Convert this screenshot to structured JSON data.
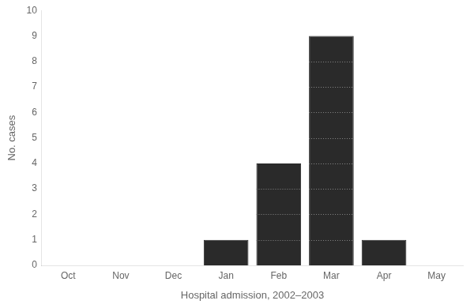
{
  "chart_data": {
    "type": "bar",
    "categories": [
      "Oct",
      "Nov",
      "Dec",
      "Jan",
      "Feb",
      "Mar",
      "Apr",
      "May"
    ],
    "values": [
      0,
      0,
      0,
      1,
      4,
      9,
      1,
      0
    ],
    "color": "#2a2a2a",
    "xlabel": "Hospital admission, 2002–2003",
    "ylabel": "No. cases",
    "ylim": [
      0,
      10
    ],
    "yticks": [
      0,
      1,
      2,
      3,
      4,
      5,
      6,
      7,
      8,
      9,
      10
    ],
    "grid": false
  }
}
